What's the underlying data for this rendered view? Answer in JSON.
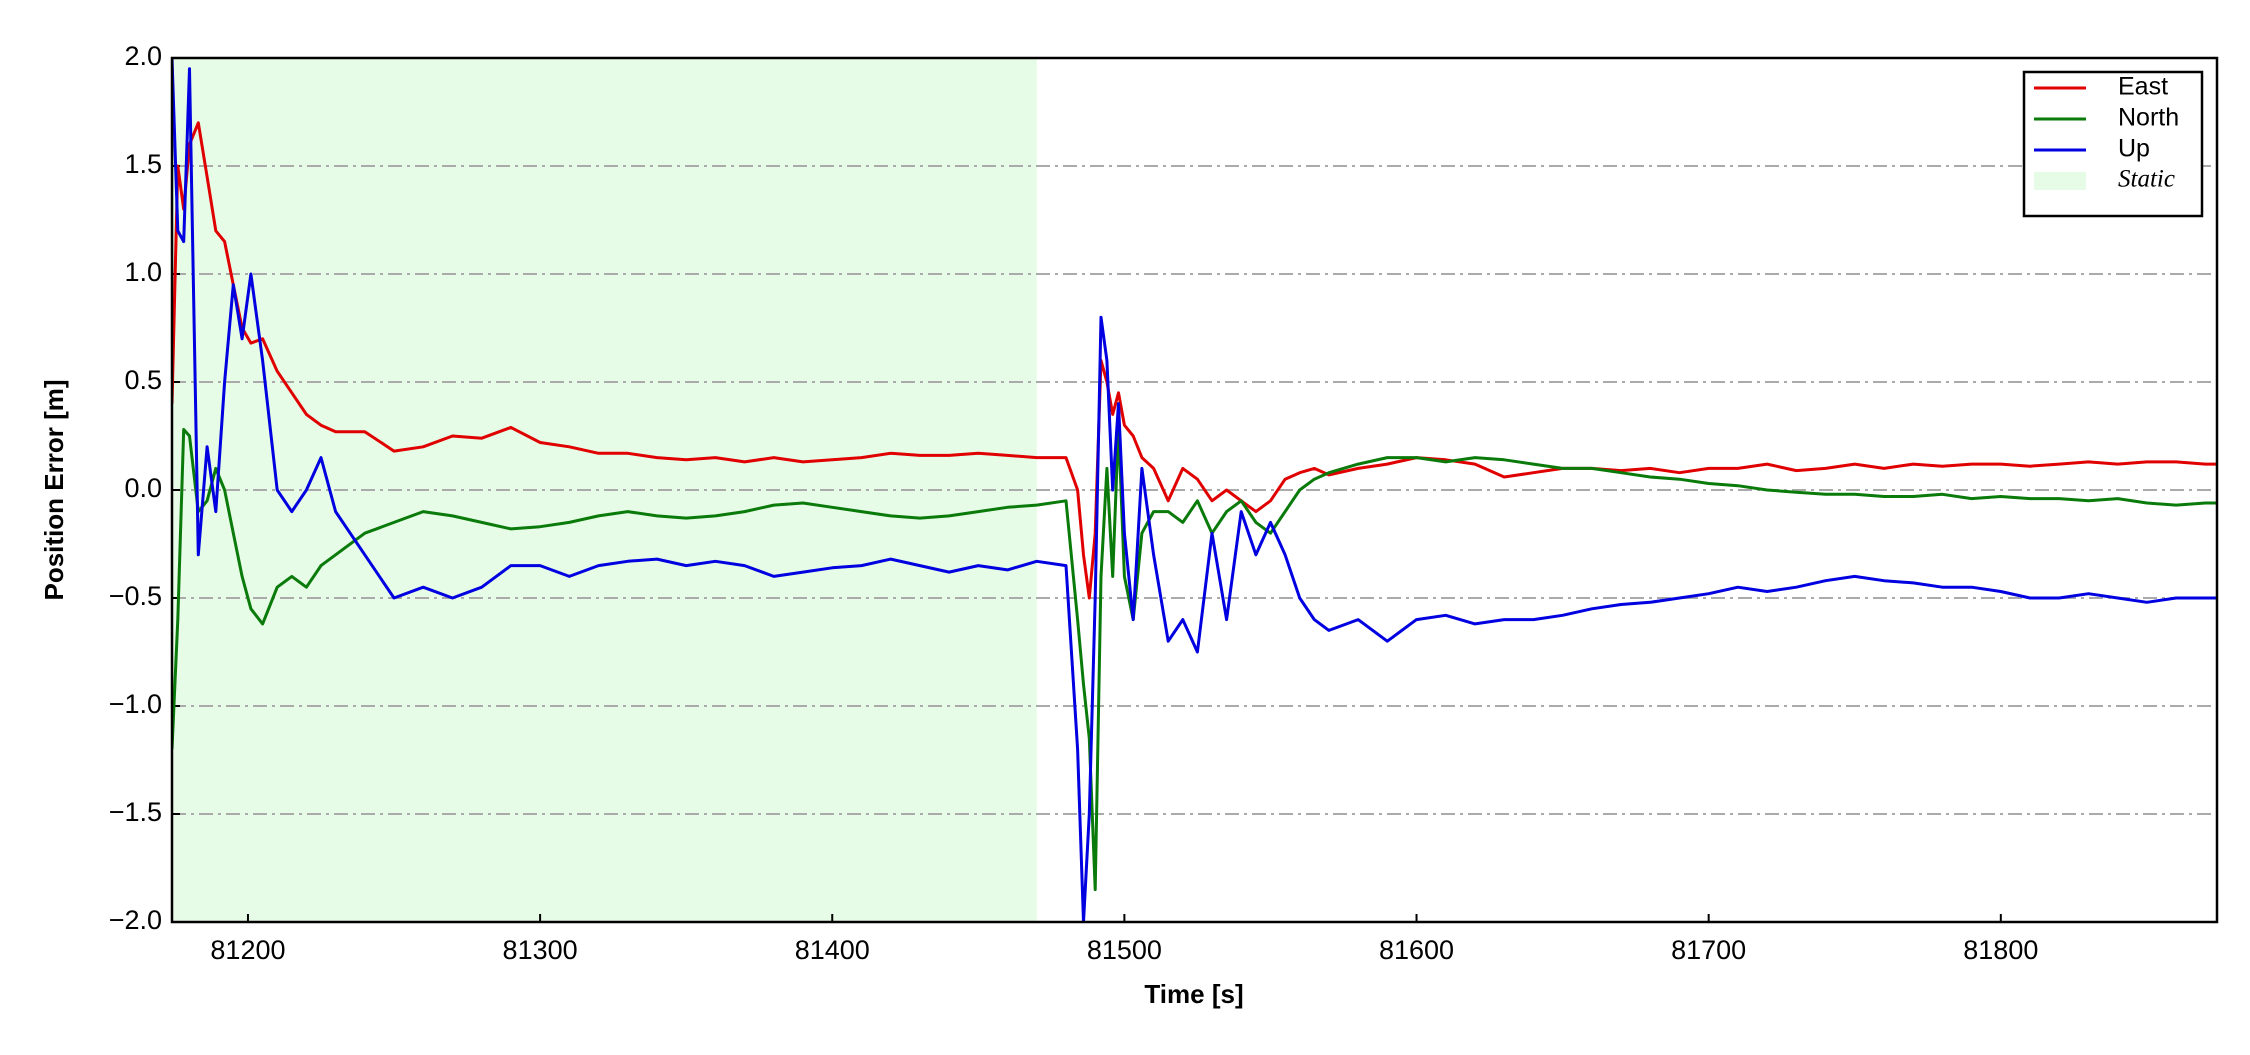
{
  "chart_data": {
    "type": "line",
    "xlabel": "Time [s]",
    "ylabel": "Position Error [m]",
    "xlim": [
      81174,
      81874
    ],
    "ylim": [
      -2.0,
      2.0
    ],
    "xticks": [
      81200,
      81300,
      81400,
      81500,
      81600,
      81700,
      81800
    ],
    "yticks": [
      {
        "value": -2.0,
        "label": "−2.0"
      },
      {
        "value": -1.5,
        "label": "−1.5"
      },
      {
        "value": -1.0,
        "label": "−1.0"
      },
      {
        "value": -0.5,
        "label": "−0.5"
      },
      {
        "value": 0.0,
        "label": "0.0"
      },
      {
        "value": 0.5,
        "label": "0.5"
      },
      {
        "value": 1.0,
        "label": "1.0"
      },
      {
        "value": 1.5,
        "label": "1.5"
      },
      {
        "value": 2.0,
        "label": "2.0"
      }
    ],
    "grid": true,
    "legend": "upper right",
    "shaded_regions": [
      {
        "label": "Static",
        "start": 81174,
        "end": 81470,
        "color": "#e6fce6"
      }
    ],
    "x": [
      81174,
      81176,
      81178,
      81180,
      81183,
      81186,
      81189,
      81192,
      81195,
      81198,
      81201,
      81205,
      81210,
      81215,
      81220,
      81225,
      81230,
      81240,
      81250,
      81260,
      81270,
      81280,
      81290,
      81300,
      81310,
      81320,
      81330,
      81340,
      81350,
      81360,
      81370,
      81380,
      81390,
      81400,
      81410,
      81420,
      81430,
      81440,
      81450,
      81460,
      81470,
      81480,
      81484,
      81486,
      81488,
      81490,
      81492,
      81494,
      81496,
      81498,
      81500,
      81503,
      81506,
      81510,
      81515,
      81520,
      81525,
      81530,
      81535,
      81540,
      81545,
      81550,
      81555,
      81560,
      81565,
      81570,
      81580,
      81590,
      81600,
      81610,
      81620,
      81630,
      81640,
      81650,
      81660,
      81670,
      81680,
      81690,
      81700,
      81710,
      81720,
      81730,
      81740,
      81750,
      81760,
      81770,
      81780,
      81790,
      81800,
      81810,
      81820,
      81830,
      81840,
      81850,
      81860,
      81870,
      81874
    ],
    "series": [
      {
        "name": "East",
        "color": "#e00000",
        "values": [
          0.4,
          1.5,
          1.3,
          1.6,
          1.7,
          1.45,
          1.2,
          1.15,
          0.95,
          0.75,
          0.68,
          0.7,
          0.55,
          0.45,
          0.35,
          0.3,
          0.27,
          0.27,
          0.18,
          0.2,
          0.25,
          0.24,
          0.29,
          0.22,
          0.2,
          0.17,
          0.17,
          0.15,
          0.14,
          0.15,
          0.13,
          0.15,
          0.13,
          0.14,
          0.15,
          0.17,
          0.16,
          0.16,
          0.17,
          0.16,
          0.15,
          0.15,
          0.0,
          -0.3,
          -0.5,
          -0.2,
          0.6,
          0.5,
          0.35,
          0.45,
          0.3,
          0.25,
          0.15,
          0.1,
          -0.05,
          0.1,
          0.05,
          -0.05,
          0.0,
          -0.05,
          -0.1,
          -0.05,
          0.05,
          0.08,
          0.1,
          0.07,
          0.1,
          0.12,
          0.15,
          0.14,
          0.12,
          0.06,
          0.08,
          0.1,
          0.1,
          0.09,
          0.1,
          0.08,
          0.1,
          0.1,
          0.12,
          0.09,
          0.1,
          0.12,
          0.1,
          0.12,
          0.11,
          0.12,
          0.12,
          0.11,
          0.12,
          0.13,
          0.12,
          0.13,
          0.13,
          0.12,
          0.12
        ]
      },
      {
        "name": "North",
        "color": "#0a7a0a",
        "values": [
          -1.2,
          -0.6,
          0.28,
          0.25,
          -0.1,
          -0.05,
          0.1,
          0.0,
          -0.2,
          -0.4,
          -0.55,
          -0.62,
          -0.45,
          -0.4,
          -0.45,
          -0.35,
          -0.3,
          -0.2,
          -0.15,
          -0.1,
          -0.12,
          -0.15,
          -0.18,
          -0.17,
          -0.15,
          -0.12,
          -0.1,
          -0.12,
          -0.13,
          -0.12,
          -0.1,
          -0.07,
          -0.06,
          -0.08,
          -0.1,
          -0.12,
          -0.13,
          -0.12,
          -0.1,
          -0.08,
          -0.07,
          -0.05,
          -0.6,
          -0.9,
          -1.15,
          -1.85,
          -0.4,
          0.1,
          -0.4,
          0.3,
          -0.4,
          -0.6,
          -0.2,
          -0.1,
          -0.1,
          -0.15,
          -0.05,
          -0.2,
          -0.1,
          -0.05,
          -0.15,
          -0.2,
          -0.1,
          0.0,
          0.05,
          0.08,
          0.12,
          0.15,
          0.15,
          0.13,
          0.15,
          0.14,
          0.12,
          0.1,
          0.1,
          0.08,
          0.06,
          0.05,
          0.03,
          0.02,
          0.0,
          -0.01,
          -0.02,
          -0.02,
          -0.03,
          -0.03,
          -0.02,
          -0.04,
          -0.03,
          -0.04,
          -0.04,
          -0.05,
          -0.04,
          -0.06,
          -0.07,
          -0.06,
          -0.06
        ]
      },
      {
        "name": "Up",
        "color": "#0000e0",
        "values": [
          2.0,
          1.2,
          1.15,
          1.95,
          -0.3,
          0.2,
          -0.1,
          0.5,
          0.95,
          0.7,
          1.0,
          0.6,
          0.0,
          -0.1,
          0.0,
          0.15,
          -0.1,
          -0.3,
          -0.5,
          -0.45,
          -0.5,
          -0.45,
          -0.35,
          -0.35,
          -0.4,
          -0.35,
          -0.33,
          -0.32,
          -0.35,
          -0.33,
          -0.35,
          -0.4,
          -0.38,
          -0.36,
          -0.35,
          -0.32,
          -0.35,
          -0.38,
          -0.35,
          -0.37,
          -0.33,
          -0.35,
          -1.2,
          -2.0,
          -1.5,
          -0.5,
          0.8,
          0.6,
          0.0,
          0.4,
          -0.2,
          -0.6,
          0.1,
          -0.3,
          -0.7,
          -0.6,
          -0.75,
          -0.2,
          -0.6,
          -0.1,
          -0.3,
          -0.15,
          -0.3,
          -0.5,
          -0.6,
          -0.65,
          -0.6,
          -0.7,
          -0.6,
          -0.58,
          -0.62,
          -0.6,
          -0.6,
          -0.58,
          -0.55,
          -0.53,
          -0.52,
          -0.5,
          -0.48,
          -0.45,
          -0.47,
          -0.45,
          -0.42,
          -0.4,
          -0.42,
          -0.43,
          -0.45,
          -0.45,
          -0.47,
          -0.5,
          -0.5,
          -0.48,
          -0.5,
          -0.52,
          -0.5,
          -0.5,
          -0.5
        ]
      }
    ]
  }
}
